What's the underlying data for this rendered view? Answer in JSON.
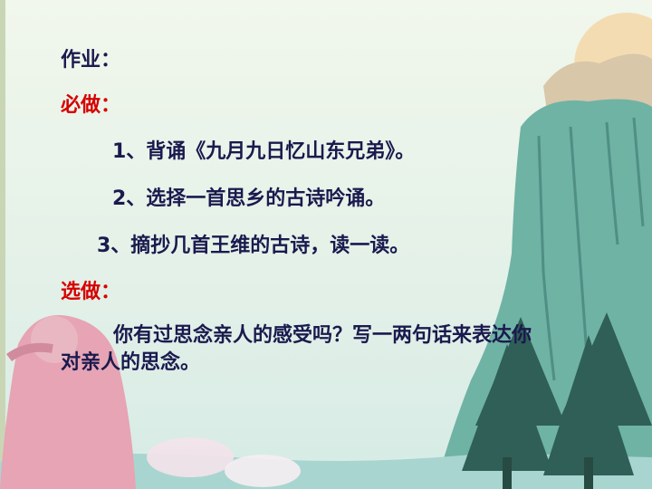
{
  "slide": {
    "title": "作业：",
    "required_label": "必做：",
    "required_items": [
      "1、背诵《九月九日忆山东兄弟》。",
      "2、选择一首思乡的古诗吟诵。",
      "3、摘抄几首王维的古诗，读一读。"
    ],
    "optional_label": "选做：",
    "optional_text": "你有过思念亲人的感受吗？写一两句话来表达你对亲人的思念。"
  },
  "colors": {
    "body_text": "#1a1a4e",
    "accent_red": "#d60000",
    "cliff": "#6fb3a5",
    "trees": "#2f5f56"
  }
}
